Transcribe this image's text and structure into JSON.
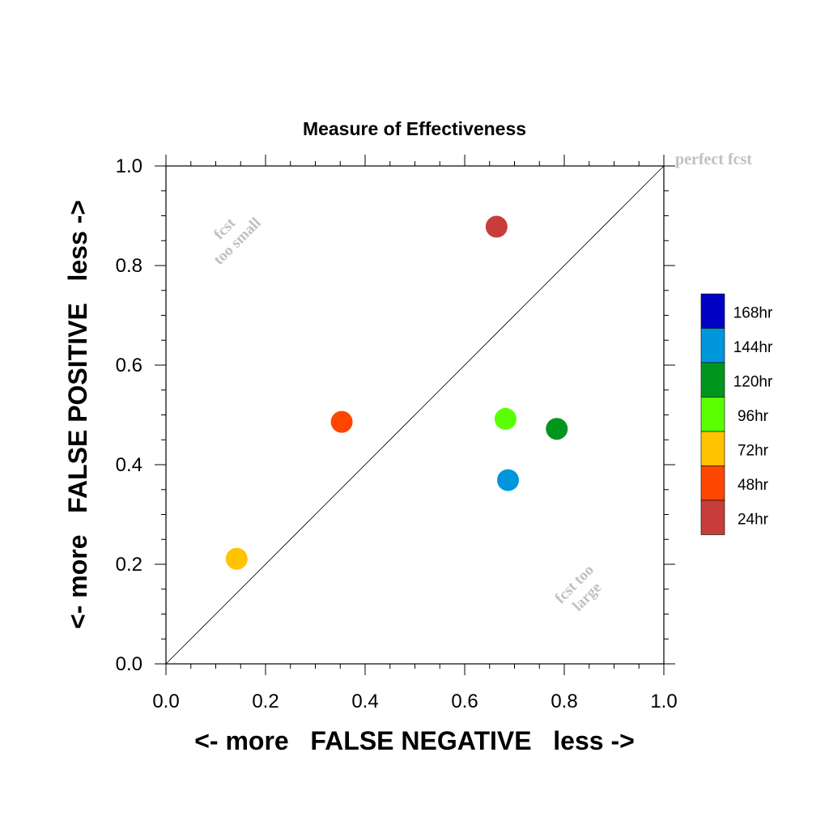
{
  "chart_data": {
    "type": "scatter",
    "title": "Measure of Effectiveness",
    "xlabel": "<- more   FALSE NEGATIVE   less ->",
    "ylabel": "<- more   FALSE POSITIVE   less ->",
    "xlim": [
      0.0,
      1.0
    ],
    "ylim": [
      0.0,
      1.0
    ],
    "x_ticks": [
      "0.0",
      "0.2",
      "0.4",
      "0.6",
      "0.8",
      "1.0"
    ],
    "y_ticks": [
      "0.0",
      "0.2",
      "0.4",
      "0.6",
      "0.8",
      "1.0"
    ],
    "grid": false,
    "reference_line": {
      "from": [
        0.0,
        0.0
      ],
      "to": [
        1.0,
        1.0
      ]
    },
    "annotations": {
      "perfect": "perfect fcst",
      "too_small_line1": "fcst",
      "too_small_line2": "too small",
      "too_large_line1": "fcst too",
      "too_large_line2": "large"
    },
    "legend": {
      "placement": "right",
      "entries": [
        {
          "label": "168hr",
          "color": "#0000c4"
        },
        {
          "label": "144hr",
          "color": "#0096dc"
        },
        {
          "label": "120hr",
          "color": "#00961e"
        },
        {
          "label": "96hr",
          "color": "#5aff00"
        },
        {
          "label": "72hr",
          "color": "#ffc300"
        },
        {
          "label": "48hr",
          "color": "#ff4600"
        },
        {
          "label": "24hr",
          "color": "#c83c3c"
        }
      ]
    },
    "series": [
      {
        "label": "24hr",
        "x": 0.664,
        "y": 0.878,
        "color": "#c83c3c"
      },
      {
        "label": "48hr",
        "x": 0.353,
        "y": 0.486,
        "color": "#ff4600"
      },
      {
        "label": "72hr",
        "x": 0.142,
        "y": 0.211,
        "color": "#ffc300"
      },
      {
        "label": "96hr",
        "x": 0.682,
        "y": 0.492,
        "color": "#5aff00"
      },
      {
        "label": "120hr",
        "x": 0.785,
        "y": 0.472,
        "color": "#00961e"
      },
      {
        "label": "144hr",
        "x": 0.687,
        "y": 0.369,
        "color": "#0096dc"
      }
    ]
  }
}
